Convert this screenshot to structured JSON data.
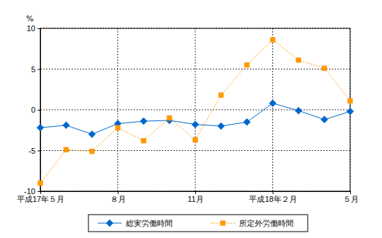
{
  "chart_data": {
    "type": "line",
    "y_label": "%",
    "categories": [
      "平成17年５月",
      null,
      null,
      "８月",
      null,
      null,
      "11月",
      null,
      null,
      "平成18年２月",
      null,
      null,
      "５月"
    ],
    "series": [
      {
        "name": "総実労働時間",
        "color": "#0066cc",
        "marker": "diamond",
        "line_style": "solid",
        "values": [
          -2.2,
          -1.9,
          -3.0,
          -1.7,
          -1.4,
          -1.3,
          -1.8,
          -2.0,
          -1.5,
          0.8,
          -0.1,
          -1.2,
          -0.2
        ]
      },
      {
        "name": "所定外労働時間",
        "color": "#ff9900",
        "marker": "square",
        "line_style": "dotted",
        "values": [
          -9.0,
          -4.9,
          -5.1,
          -2.2,
          -3.8,
          -1.0,
          -3.7,
          1.8,
          5.5,
          8.6,
          6.1,
          5.1,
          1.1
        ]
      }
    ],
    "ylim": [
      -10,
      10
    ],
    "yticks": [
      -10,
      -5,
      0,
      5,
      10
    ],
    "grid": true,
    "legend": "bottom"
  }
}
